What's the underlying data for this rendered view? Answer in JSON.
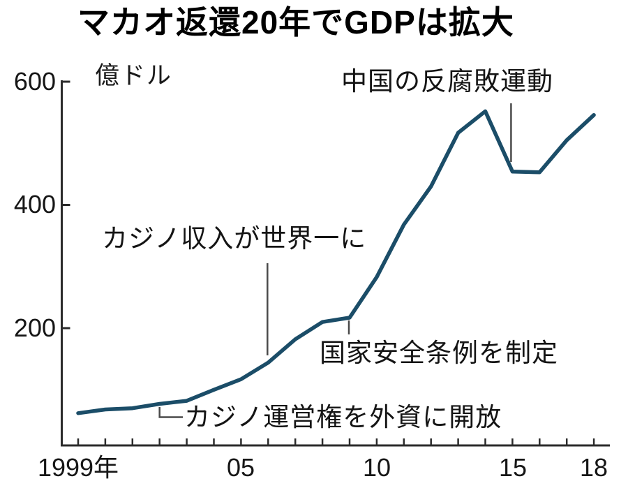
{
  "title": "マカオ返還20年でGDPは拡大",
  "colors": {
    "line": "#1b4d68",
    "axis": "#2b2b2b",
    "annotation_line": "#4a4a4a",
    "text": "#1a1a1a",
    "background": "#ffffff"
  },
  "chart_data": {
    "type": "line",
    "title": "マカオ返還20年でGDPは拡大",
    "ylabel": "億ドル",
    "xlabel": "",
    "x": [
      1999,
      2000,
      2001,
      2002,
      2003,
      2004,
      2005,
      2006,
      2007,
      2008,
      2009,
      2010,
      2011,
      2012,
      2013,
      2014,
      2015,
      2016,
      2017,
      2018
    ],
    "values": [
      62,
      68,
      70,
      77,
      82,
      100,
      117,
      144,
      182,
      210,
      217,
      283,
      368,
      430,
      517,
      552,
      454,
      453,
      505,
      546
    ],
    "ylim": [
      0,
      600
    ],
    "yticks": [
      200,
      400,
      600
    ],
    "ytick_labels": [
      "200",
      "400",
      "600"
    ],
    "labeled_years": [
      1999,
      2005,
      2010,
      2015,
      2018
    ],
    "xtick_labels": [
      "1999年",
      "05",
      "10",
      "15",
      "18"
    ],
    "grid": false,
    "legend_position": "none",
    "annotations": [
      {
        "year": 2002,
        "value": 77,
        "text": "カジノ運営権を外資に開放"
      },
      {
        "year": 2006,
        "value": 144,
        "text": "カジノ収入が世界一に"
      },
      {
        "year": 2009,
        "value": 217,
        "text": "国家安全条例を制定"
      },
      {
        "year": 2015,
        "value": 454,
        "text": "中国の反腐敗運動"
      }
    ]
  }
}
